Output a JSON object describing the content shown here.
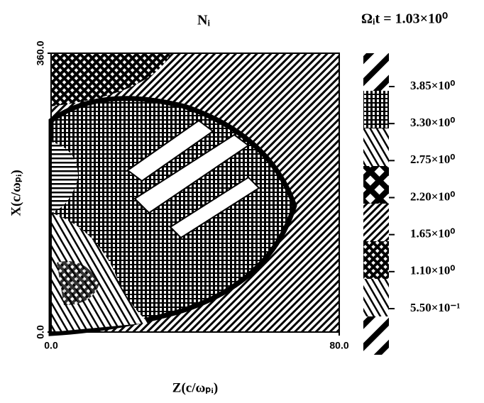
{
  "chart_data": {
    "type": "contour",
    "title": "Nᵢ",
    "subtitle": "Ωᵢt = 1.03×10⁰",
    "x_label": "Z(c/ωₚᵢ)",
    "y_label": "X(c/ωₚᵢ)",
    "xlim": [
      0,
      80
    ],
    "ylim": [
      0,
      360
    ],
    "xticks": [
      {
        "value": 0,
        "label": "0.0"
      },
      {
        "value": 80,
        "label": "80.0"
      }
    ],
    "yticks": [
      {
        "value": 0,
        "label": "0.0"
      },
      {
        "value": 360,
        "label": "360.0"
      }
    ],
    "levels": [
      {
        "value": 3.85,
        "label": "3.85×10⁰"
      },
      {
        "value": 3.3,
        "label": "3.30×10⁰"
      },
      {
        "value": 2.75,
        "label": "2.75×10⁰"
      },
      {
        "value": 2.2,
        "label": "2.20×10⁰"
      },
      {
        "value": 1.65,
        "label": "1.65×10⁰"
      },
      {
        "value": 1.1,
        "label": "1.10×10⁰"
      },
      {
        "value": 0.55,
        "label": "5.50×10⁻¹"
      }
    ]
  }
}
